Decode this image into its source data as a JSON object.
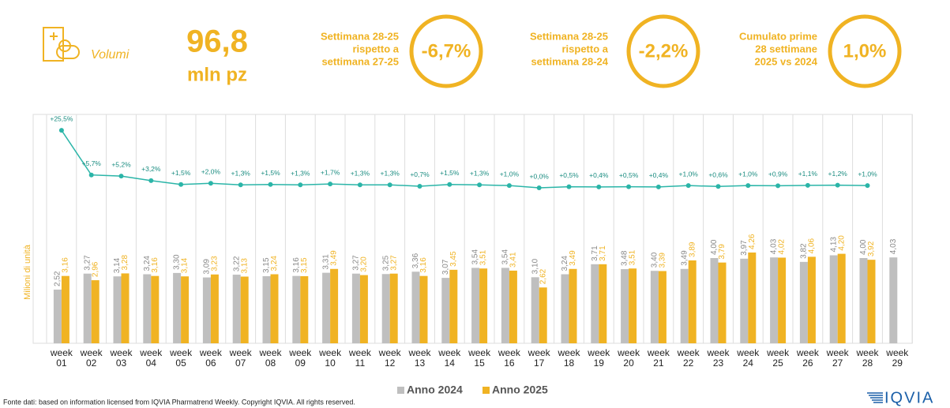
{
  "header": {
    "metric": "Volumi",
    "value": "96,8",
    "unit": "mln pz",
    "kpis": [
      {
        "label": [
          "Settimana 28-25",
          "rispetto a",
          "settimana 27-25"
        ],
        "value": "-6,7%"
      },
      {
        "label": [
          "Settimana 28-25",
          "rispetto a",
          "settimana 28-24"
        ],
        "value": "-2,2%"
      },
      {
        "label": [
          "Cumulato prime",
          "28 settimane",
          "2025 vs 2024"
        ],
        "value": "1,0%"
      }
    ]
  },
  "chart_data": {
    "type": "bar",
    "y_label": "Milioni di unità",
    "categories": [
      "week 01",
      "week 02",
      "week 03",
      "week 04",
      "week 05",
      "week 06",
      "week 07",
      "week 08",
      "week 09",
      "week 10",
      "week 11",
      "week 12",
      "week 13",
      "week 14",
      "week 15",
      "week 16",
      "week 17",
      "week 18",
      "week 19",
      "week 20",
      "week 21",
      "week 22",
      "week 23",
      "week 24",
      "week 25",
      "week 26",
      "week 27",
      "week 28",
      "week 29"
    ],
    "series": [
      {
        "name": "Anno 2024",
        "color": "#bfbfbf",
        "values": [
          2.52,
          3.27,
          3.14,
          3.24,
          3.3,
          3.09,
          3.22,
          3.15,
          3.16,
          3.31,
          3.27,
          3.25,
          3.36,
          3.07,
          3.54,
          3.54,
          3.1,
          3.24,
          3.71,
          3.48,
          3.4,
          3.49,
          4.0,
          3.97,
          4.03,
          3.82,
          4.13,
          4.0,
          4.03
        ],
        "value_labels": [
          "2,52",
          "3,27",
          "3,14",
          "3,24",
          "3,30",
          "3,09",
          "3,22",
          "3,15",
          "3,16",
          "3,31",
          "3,27",
          "3,25",
          "3,36",
          "3,07",
          "3,54",
          "3,54",
          "3,10",
          "3,24",
          "3,71",
          "3,48",
          "3,40",
          "3,49",
          "4,00",
          "3,97",
          "4,03",
          "3,82",
          "4,13",
          "4,00",
          "4,03"
        ]
      },
      {
        "name": "Anno 2025",
        "color": "#f0b323",
        "values": [
          3.16,
          2.96,
          3.28,
          3.16,
          3.14,
          3.23,
          3.13,
          3.24,
          3.15,
          3.49,
          3.2,
          3.27,
          3.16,
          3.45,
          3.51,
          3.41,
          2.62,
          3.49,
          3.71,
          3.51,
          3.39,
          3.89,
          3.79,
          4.26,
          4.02,
          4.06,
          4.2,
          3.92,
          null
        ],
        "value_labels": [
          "3,16",
          "2,96",
          "3,28",
          "3,16",
          "3,14",
          "3,23",
          "3,13",
          "3,24",
          "3,15",
          "3,49",
          "3,20",
          "3,27",
          "3,16",
          "3,45",
          "3,51",
          "3,41",
          "2,62",
          "3,49",
          "3,71",
          "3,51",
          "3,39",
          "3,89",
          "3,79",
          "4,26",
          "4,02",
          "4,06",
          "4,20",
          "3,92",
          null
        ]
      },
      {
        "type": "line",
        "color": "#2bb5a8",
        "values": [
          25.5,
          5.7,
          5.2,
          3.2,
          1.5,
          2.0,
          1.3,
          1.5,
          1.3,
          1.7,
          1.3,
          1.3,
          0.7,
          1.5,
          1.3,
          1.0,
          0.0,
          0.5,
          0.4,
          0.5,
          0.4,
          1.0,
          0.6,
          1.0,
          0.9,
          1.1,
          1.2,
          1.0,
          null
        ],
        "value_labels": [
          "+25,5%",
          "+5,7%",
          "+5,2%",
          "+3,2%",
          "+1,5%",
          "+2,0%",
          "+1,3%",
          "+1,5%",
          "+1,3%",
          "+1,7%",
          "+1,3%",
          "+1,3%",
          "+0,7%",
          "+1,5%",
          "+1,3%",
          "+1,0%",
          "+0,0%",
          "+0,5%",
          "+0,4%",
          "+0,5%",
          "+0,4%",
          "+1,0%",
          "+0,6%",
          "+1,0%",
          "+0,9%",
          "+1,1%",
          "+1,2%",
          "+1,0%",
          null
        ]
      }
    ],
    "grid": true,
    "source": "Fonte dati: based on information licensed from IQVIA Pharmatrend Weekly. Copyright IQVIA. All rights reserved.",
    "logo": "IQVIA"
  }
}
